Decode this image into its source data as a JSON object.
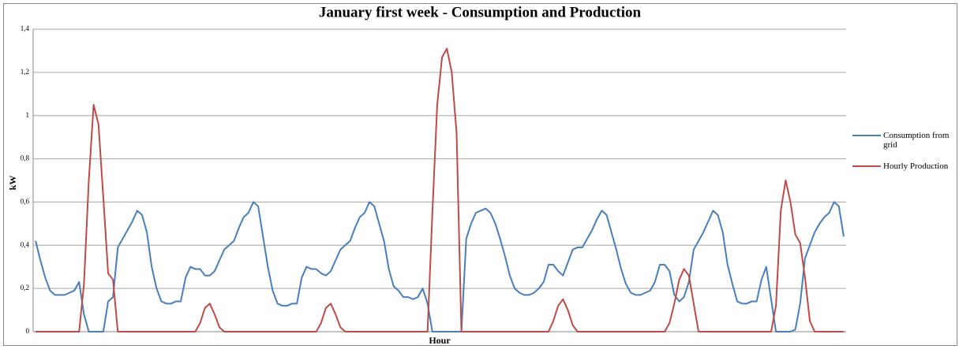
{
  "chart_data": {
    "type": "line",
    "title": "January first week - Consumption and Production",
    "x_label": "Hour",
    "y_label": "kW",
    "ylim": [
      0,
      1.4
    ],
    "yticks": [
      0,
      {
        "value": 0.2,
        "label": "0,2"
      },
      {
        "value": 0.4,
        "label": "0,4"
      },
      {
        "value": 0.6,
        "label": "0,6"
      },
      {
        "value": 0.8,
        "label": "0,8"
      },
      1,
      {
        "value": 1.2,
        "label": "1,2"
      },
      {
        "value": 1.4,
        "label": "1,4"
      }
    ],
    "grid": true,
    "legend": "right",
    "series": [
      {
        "name": "Consumption from grid",
        "color": "#4a7ebb",
        "values": [
          0.42,
          0.33,
          0.25,
          0.19,
          0.17,
          0.17,
          0.17,
          0.18,
          0.19,
          0.23,
          0.08,
          0,
          0,
          0,
          0,
          0.14,
          0.16,
          0.39,
          0.43,
          0.47,
          0.51,
          0.56,
          0.54,
          0.46,
          0.3,
          0.2,
          0.14,
          0.13,
          0.13,
          0.14,
          0.14,
          0.25,
          0.3,
          0.29,
          0.29,
          0.26,
          0.26,
          0.28,
          0.33,
          0.38,
          0.4,
          0.42,
          0.48,
          0.53,
          0.55,
          0.6,
          0.58,
          0.44,
          0.3,
          0.19,
          0.13,
          0.12,
          0.12,
          0.13,
          0.13,
          0.25,
          0.3,
          0.29,
          0.29,
          0.27,
          0.26,
          0.28,
          0.33,
          0.38,
          0.4,
          0.42,
          0.48,
          0.53,
          0.55,
          0.6,
          0.58,
          0.5,
          0.42,
          0.29,
          0.21,
          0.19,
          0.16,
          0.16,
          0.15,
          0.16,
          0.2,
          0.13,
          0,
          0,
          0,
          0,
          0,
          0,
          0,
          0.43,
          0.5,
          0.55,
          0.56,
          0.57,
          0.55,
          0.5,
          0.43,
          0.35,
          0.26,
          0.2,
          0.18,
          0.17,
          0.17,
          0.18,
          0.2,
          0.23,
          0.31,
          0.31,
          0.28,
          0.26,
          0.32,
          0.38,
          0.39,
          0.39,
          0.43,
          0.47,
          0.52,
          0.56,
          0.54,
          0.46,
          0.38,
          0.29,
          0.22,
          0.18,
          0.17,
          0.17,
          0.18,
          0.19,
          0.23,
          0.31,
          0.31,
          0.28,
          0.17,
          0.14,
          0.16,
          0.23,
          0.38,
          0.42,
          0.46,
          0.51,
          0.56,
          0.54,
          0.46,
          0.31,
          0.22,
          0.14,
          0.13,
          0.13,
          0.14,
          0.14,
          0.24,
          0.3,
          0.15,
          0,
          0,
          0,
          0,
          0.01,
          0.13,
          0.34,
          0.4,
          0.46,
          0.5,
          0.53,
          0.55,
          0.6,
          0.58,
          0.44
        ]
      },
      {
        "name": "Hourly Production",
        "color": "#be4b48",
        "values": [
          0,
          0,
          0,
          0,
          0,
          0,
          0,
          0,
          0,
          0,
          0.22,
          0.7,
          1.05,
          0.96,
          0.62,
          0.27,
          0.24,
          0,
          0,
          0,
          0,
          0,
          0,
          0,
          0,
          0,
          0,
          0,
          0,
          0,
          0,
          0,
          0,
          0,
          0.04,
          0.11,
          0.13,
          0.08,
          0.02,
          0,
          0,
          0,
          0,
          0,
          0,
          0,
          0,
          0,
          0,
          0,
          0,
          0,
          0,
          0,
          0,
          0,
          0,
          0,
          0,
          0.04,
          0.11,
          0.13,
          0.08,
          0.02,
          0,
          0,
          0,
          0,
          0,
          0,
          0,
          0,
          0,
          0,
          0,
          0,
          0,
          0,
          0,
          0,
          0,
          0,
          0.55,
          1.05,
          1.27,
          1.31,
          1.2,
          0.92,
          0,
          0,
          0,
          0,
          0,
          0,
          0,
          0,
          0,
          0,
          0,
          0,
          0,
          0,
          0,
          0,
          0,
          0,
          0,
          0.05,
          0.12,
          0.15,
          0.1,
          0.03,
          0,
          0,
          0,
          0,
          0,
          0,
          0,
          0,
          0,
          0,
          0,
          0,
          0,
          0,
          0,
          0,
          0,
          0,
          0,
          0.04,
          0.13,
          0.24,
          0.29,
          0.26,
          0.13,
          0,
          0,
          0,
          0,
          0,
          0,
          0,
          0,
          0,
          0,
          0,
          0,
          0,
          0,
          0,
          0,
          0.12,
          0.56,
          0.7,
          0.6,
          0.45,
          0.41,
          0.25,
          0.05,
          0,
          0,
          0,
          0,
          0,
          0,
          0
        ]
      }
    ]
  }
}
